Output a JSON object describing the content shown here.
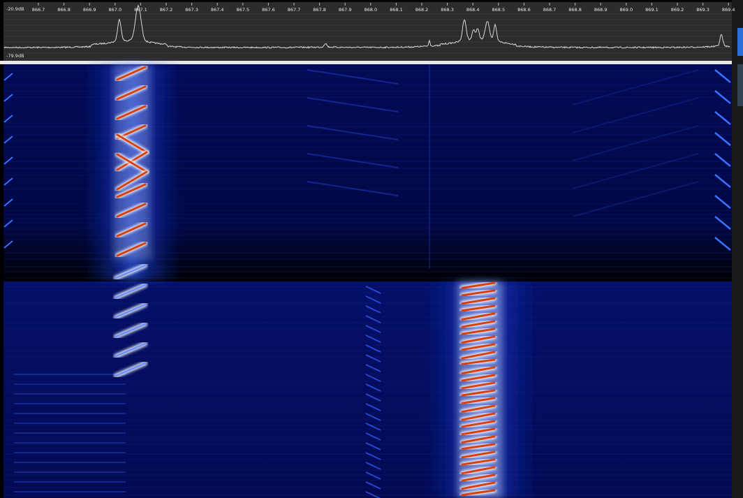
{
  "spectrum": {
    "ref_top": "-20.9dB",
    "ref_bottom": "-79.9dB",
    "freq_labels": [
      "866.7",
      "866.8",
      "866.9",
      "867.0",
      "867.1",
      "867.2",
      "867.3",
      "867.4",
      "867.5",
      "867.6",
      "867.7",
      "867.8",
      "867.9",
      "868.0",
      "868.1",
      "868.2",
      "868.3",
      "868.4",
      "868.5",
      "868.6",
      "868.7",
      "868.8",
      "868.9",
      "869.0",
      "869.1",
      "869.2",
      "869.3",
      "869.4"
    ]
  }
}
